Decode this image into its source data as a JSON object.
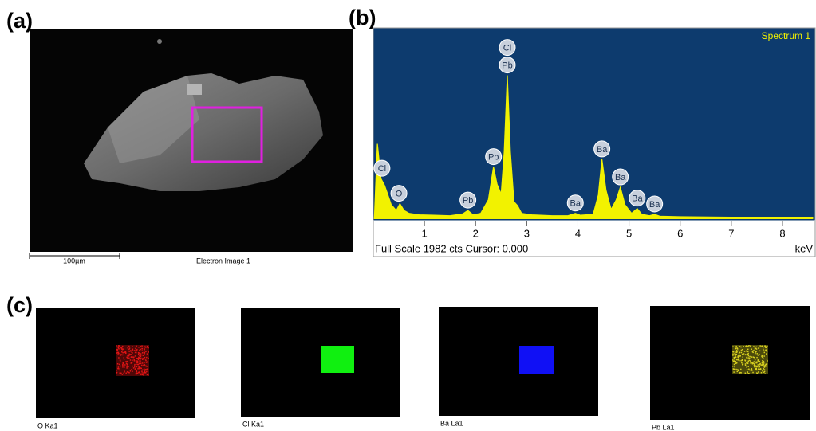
{
  "panels": {
    "a": "(a)",
    "b": "(b)",
    "c": "(c)"
  },
  "sem": {
    "scale_label": "100µm",
    "caption": "Electron Image 1"
  },
  "chart_data": {
    "type": "area",
    "title": "Spectrum 1",
    "footer": "Full Scale 1982 cts Cursor: 0.000",
    "x_unit": "keV",
    "color": "#f2f200",
    "background": "#0d3b6e",
    "xlim": [
      0,
      8.64
    ],
    "ylim": [
      0,
      1982
    ],
    "xticks": [
      1,
      2,
      3,
      4,
      5,
      6,
      7,
      8
    ],
    "x": [
      0.02,
      0.08,
      0.15,
      0.22,
      0.28,
      0.35,
      0.45,
      0.52,
      0.6,
      0.7,
      0.9,
      1.2,
      1.5,
      1.75,
      1.85,
      1.95,
      2.1,
      2.25,
      2.35,
      2.42,
      2.5,
      2.56,
      2.62,
      2.68,
      2.75,
      2.82,
      2.9,
      3.1,
      3.5,
      3.8,
      3.95,
      4.05,
      4.3,
      4.4,
      4.47,
      4.55,
      4.65,
      4.75,
      4.83,
      4.92,
      5.05,
      5.16,
      5.25,
      5.4,
      5.5,
      5.6,
      6,
      7,
      8,
      8.6
    ],
    "values": [
      0,
      780,
      420,
      350,
      260,
      150,
      90,
      160,
      90,
      60,
      45,
      40,
      35,
      55,
      90,
      45,
      60,
      200,
      540,
      360,
      260,
      700,
      1490,
      700,
      180,
      140,
      60,
      45,
      35,
      35,
      60,
      40,
      50,
      250,
      620,
      300,
      100,
      200,
      330,
      150,
      60,
      110,
      50,
      35,
      50,
      30,
      25,
      20,
      18,
      15
    ],
    "peak_labels": [
      {
        "label": "Cl",
        "x": 0.17
      },
      {
        "label": "O",
        "x": 0.5
      },
      {
        "label": "Pb",
        "x": 1.85
      },
      {
        "label": "Pb",
        "x": 2.35
      },
      {
        "label": "Pb",
        "x": 2.62
      },
      {
        "label": "Cl",
        "x": 2.62
      },
      {
        "label": "Ba",
        "x": 3.95
      },
      {
        "label": "Ba",
        "x": 4.47
      },
      {
        "label": "Ba",
        "x": 4.83
      },
      {
        "label": "Ba",
        "x": 5.16
      },
      {
        "label": "Ba",
        "x": 5.5
      }
    ]
  },
  "maps": [
    {
      "label": "O Ka1",
      "color": "#e01515",
      "speckled": true
    },
    {
      "label": "Cl Ka1",
      "color": "#10f010",
      "speckled": false
    },
    {
      "label": "Ba La1",
      "color": "#1010f5",
      "speckled": false
    },
    {
      "label": "Pb La1",
      "color": "#d8d020",
      "speckled": true
    }
  ]
}
